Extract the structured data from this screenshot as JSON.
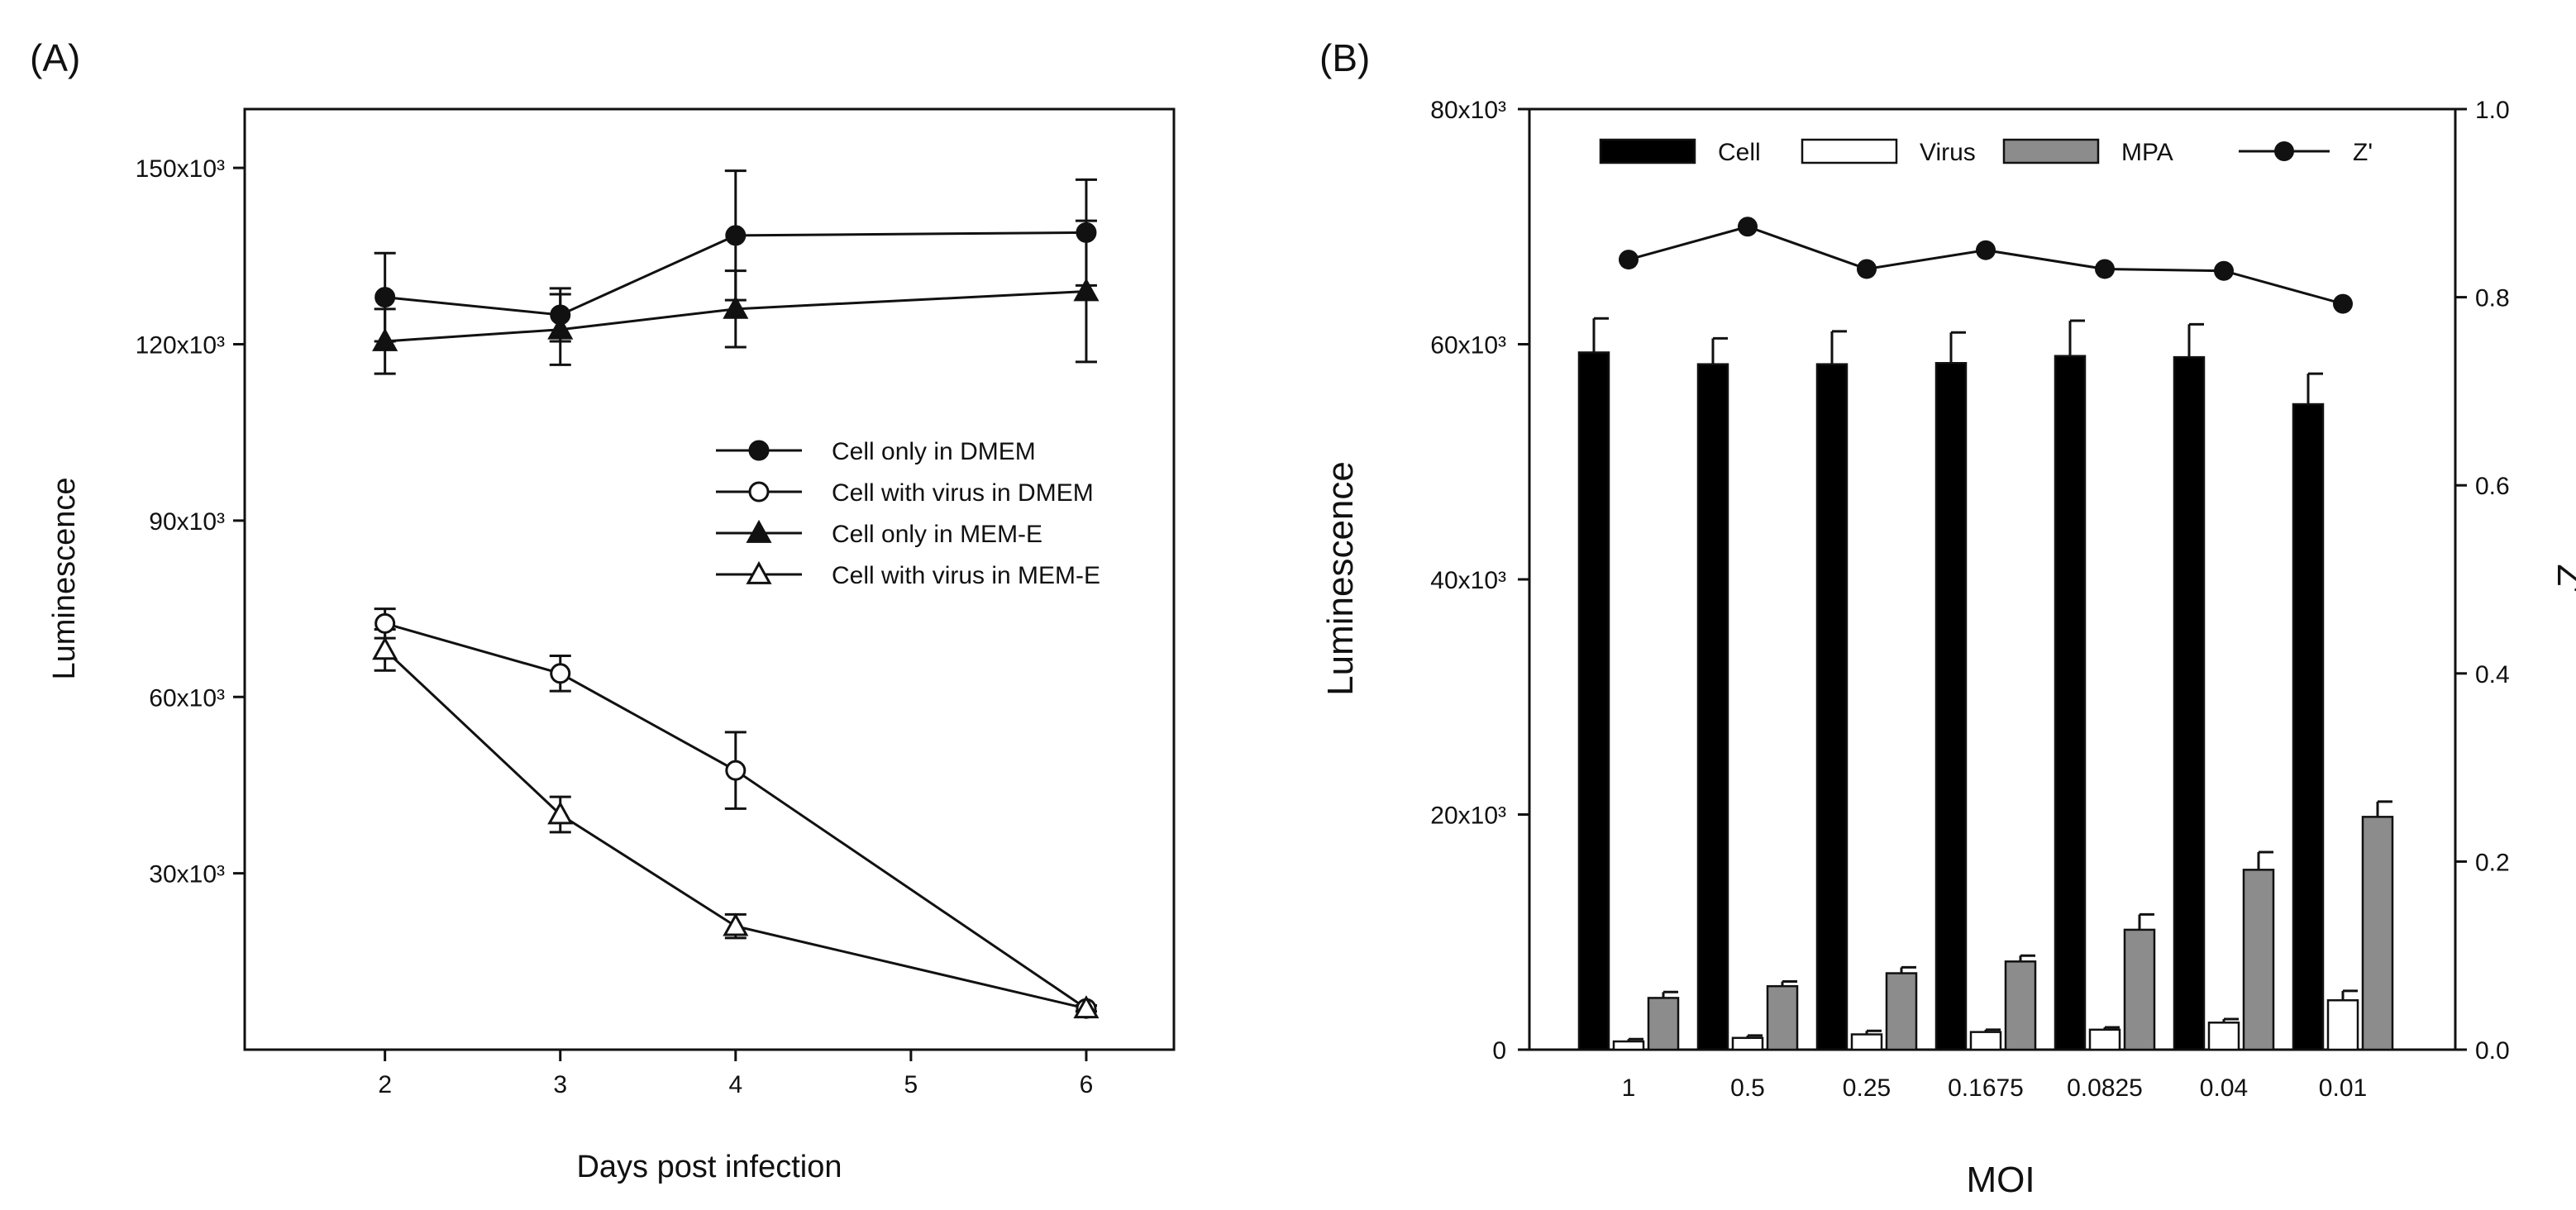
{
  "chart_data": [
    {
      "panel": "(A)",
      "type": "line",
      "xlabel": "Days post infection",
      "ylabel": "Luminescence",
      "xlim": [
        1.2,
        6.5
      ],
      "ylim": [
        0,
        160000
      ],
      "xticks": [
        2,
        3,
        4,
        5,
        6
      ],
      "yticks": [
        {
          "value": 30000,
          "label": "30x10³"
        },
        {
          "value": 60000,
          "label": "60x10³"
        },
        {
          "value": 90000,
          "label": "90x10³"
        },
        {
          "value": 120000,
          "label": "120x10³"
        },
        {
          "value": 150000,
          "label": "150x10³"
        }
      ],
      "series": [
        {
          "name": "Cell only in DMEM",
          "marker": "circle-filled",
          "x": [
            2,
            3,
            4,
            6
          ],
          "y": [
            128000,
            125000,
            138500,
            139000
          ],
          "err": [
            7500,
            4500,
            11000,
            9000
          ]
        },
        {
          "name": "Cell with virus in DMEM",
          "marker": "circle-open",
          "x": [
            2,
            3,
            4,
            6
          ],
          "y": [
            72500,
            64000,
            47500,
            7000
          ],
          "err": [
            2500,
            3000,
            6500,
            500
          ]
        },
        {
          "name": "Cell only in MEM-E",
          "marker": "triangle-filled",
          "x": [
            2,
            3,
            4,
            6
          ],
          "y": [
            120500,
            122500,
            126000,
            129000
          ],
          "err": [
            5500,
            6000,
            6500,
            12000
          ]
        },
        {
          "name": "Cell with virus in MEM-E",
          "marker": "triangle-open",
          "x": [
            2,
            3,
            4,
            6
          ],
          "y": [
            68000,
            40000,
            21000,
            7000
          ],
          "err": [
            3500,
            3000,
            2000,
            500
          ]
        }
      ]
    },
    {
      "panel": "(B)",
      "type": "bar",
      "xlabel": "MOI",
      "ylabel": "Luminescence",
      "y2label": "Z'",
      "ylim": [
        0,
        80000
      ],
      "y2lim": [
        0,
        1.0
      ],
      "categories": [
        "1",
        "0.5",
        "0.25",
        "0.1675",
        "0.0825",
        "0.04",
        "0.01"
      ],
      "yticks": [
        {
          "value": 0,
          "label": "0"
        },
        {
          "value": 20000,
          "label": "20x10³"
        },
        {
          "value": 40000,
          "label": "40x10³"
        },
        {
          "value": 60000,
          "label": "60x10³"
        },
        {
          "value": 80000,
          "label": "80x10³"
        }
      ],
      "y2ticks": [
        {
          "value": 0.0,
          "label": "0.0"
        },
        {
          "value": 0.2,
          "label": "0.2"
        },
        {
          "value": 0.4,
          "label": "0.4"
        },
        {
          "value": 0.6,
          "label": "0.6"
        },
        {
          "value": 0.8,
          "label": "0.8"
        },
        {
          "value": 1.0,
          "label": "1.0"
        }
      ],
      "series": [
        {
          "name": "Cell",
          "color": "#000000",
          "values": [
            59300,
            58300,
            58300,
            58400,
            59000,
            58900,
            54900
          ],
          "err": [
            2900,
            2200,
            2800,
            2600,
            3000,
            2800,
            2600
          ]
        },
        {
          "name": "Virus",
          "color": "#ffffff",
          "values": [
            700,
            1000,
            1300,
            1500,
            1700,
            2300,
            4200
          ],
          "err": [
            200,
            200,
            300,
            200,
            200,
            300,
            800
          ]
        },
        {
          "name": "MPA",
          "color": "#8c8c8c",
          "values": [
            4400,
            5400,
            6500,
            7500,
            10200,
            15300,
            19800
          ],
          "err": [
            500,
            400,
            500,
            500,
            1300,
            1500,
            1300
          ]
        }
      ],
      "z_prime": {
        "name": "Z'",
        "values": [
          0.84,
          0.875,
          0.83,
          0.85,
          0.83,
          0.828,
          0.793
        ]
      }
    }
  ]
}
